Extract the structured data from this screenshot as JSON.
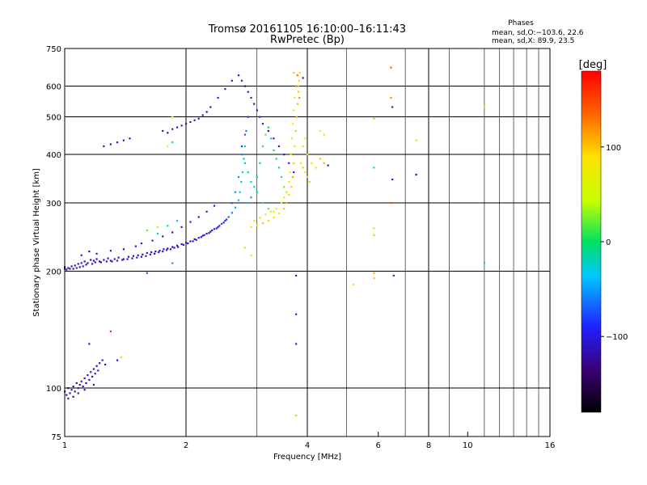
{
  "header": {
    "title_line1": "Tromsø 20161105 16:10:00–16:11:43",
    "title_line2": "RwPretec (Bp)",
    "phases_label": "Phases",
    "stats_o": "mean, sd,O:−103.6, 22.6",
    "stats_x": "mean, sd,X:  89.9, 23.5"
  },
  "colorbar": {
    "unit_label": "[deg]",
    "ticks": [
      {
        "value": 100,
        "label": "100"
      },
      {
        "value": 0,
        "label": "0"
      },
      {
        "value": -100,
        "label": "−100"
      }
    ],
    "range": [
      -180,
      180
    ]
  },
  "chart_data": {
    "type": "scatter",
    "title": "Tromsø 20161105 16:10:00–16:11:43 RwPretec (Bp)",
    "xlabel": "Frequency [MHz]",
    "ylabel": "Stationary phase Virtual Height [km]",
    "x_scale": "log",
    "y_scale": "log",
    "xlim": [
      1,
      16
    ],
    "ylim": [
      75,
      750
    ],
    "x_ticks": [
      {
        "value": 1,
        "label": "1"
      },
      {
        "value": 2,
        "label": "2"
      },
      {
        "value": 4,
        "label": "4"
      },
      {
        "value": 6,
        "label": "6"
      },
      {
        "value": 8,
        "label": "8"
      },
      {
        "value": 10,
        "label": "10"
      },
      {
        "value": 16,
        "label": "16"
      }
    ],
    "x_minor": [
      3,
      5,
      7,
      9,
      11,
      12,
      13,
      14,
      15
    ],
    "y_ticks": [
      {
        "value": 75,
        "label": "75"
      },
      {
        "value": 100,
        "label": "100"
      },
      {
        "value": 200,
        "label": "200"
      },
      {
        "value": 300,
        "label": "300"
      },
      {
        "value": 400,
        "label": "400"
      },
      {
        "value": 500,
        "label": "500"
      },
      {
        "value": 600,
        "label": "600"
      },
      {
        "value": 750,
        "label": "750"
      }
    ],
    "y_grid": [
      100,
      200,
      300,
      400,
      500,
      600
    ],
    "x_grid": [
      2,
      4,
      8
    ],
    "color_label": "phase [deg]",
    "points": [
      [
        1.0,
        205,
        -110
      ],
      [
        1.02,
        204,
        -115
      ],
      [
        1.04,
        206,
        -108
      ],
      [
        1.06,
        207,
        -112
      ],
      [
        1.08,
        209,
        -105
      ],
      [
        1.1,
        210,
        -100
      ],
      [
        1.12,
        212,
        -110
      ],
      [
        1.14,
        210,
        -118
      ],
      [
        1.16,
        214,
        -104
      ],
      [
        1.18,
        213,
        -96
      ],
      [
        1.2,
        215,
        -112
      ],
      [
        1.22,
        212,
        -120
      ],
      [
        1.25,
        214,
        -100
      ],
      [
        1.28,
        216,
        -108
      ],
      [
        1.3,
        213,
        -115
      ],
      [
        1.33,
        215,
        -95
      ],
      [
        1.36,
        217,
        -110
      ],
      [
        1.4,
        215,
        -102
      ],
      [
        1.44,
        218,
        -110
      ],
      [
        1.48,
        219,
        -106
      ],
      [
        1.52,
        220,
        -112
      ],
      [
        1.56,
        221,
        -100
      ],
      [
        1.6,
        223,
        -108
      ],
      [
        1.64,
        224,
        -115
      ],
      [
        1.68,
        225,
        -104
      ],
      [
        1.72,
        226,
        -110
      ],
      [
        1.76,
        228,
        -96
      ],
      [
        1.8,
        229,
        -108
      ],
      [
        1.85,
        231,
        -112
      ],
      [
        1.9,
        233,
        -104
      ],
      [
        1.95,
        235,
        -110
      ],
      [
        2.0,
        237,
        -100
      ],
      [
        2.05,
        239,
        -106
      ],
      [
        2.1,
        242,
        -112
      ],
      [
        2.15,
        244,
        -98
      ],
      [
        2.2,
        247,
        -104
      ],
      [
        2.25,
        250,
        -110
      ],
      [
        2.3,
        253,
        -100
      ],
      [
        2.35,
        257,
        -90
      ],
      [
        2.4,
        260,
        -96
      ],
      [
        2.45,
        265,
        -80
      ],
      [
        2.5,
        270,
        -84
      ],
      [
        2.55,
        276,
        -70
      ],
      [
        2.6,
        283,
        -60
      ],
      [
        2.65,
        292,
        -50
      ],
      [
        2.7,
        305,
        -40
      ],
      [
        2.72,
        320,
        -30
      ],
      [
        2.74,
        340,
        -20
      ],
      [
        2.76,
        360,
        -10
      ],
      [
        2.78,
        390,
        0
      ],
      [
        2.8,
        420,
        -20
      ],
      [
        2.82,
        460,
        -60
      ],
      [
        2.85,
        500,
        -90
      ],
      [
        1.1,
        220,
        -105
      ],
      [
        1.15,
        225,
        -112
      ],
      [
        1.2,
        222,
        -100
      ],
      [
        1.3,
        226,
        -95
      ],
      [
        1.4,
        228,
        -108
      ],
      [
        1.5,
        232,
        -100
      ],
      [
        1.55,
        236,
        -112
      ],
      [
        1.65,
        240,
        -98
      ],
      [
        1.75,
        246,
        -104
      ],
      [
        1.85,
        252,
        -110
      ],
      [
        1.95,
        260,
        -96
      ],
      [
        2.05,
        268,
        -102
      ],
      [
        2.15,
        276,
        -108
      ],
      [
        2.25,
        285,
        -100
      ],
      [
        2.35,
        295,
        -94
      ],
      [
        1.7,
        260,
        40
      ],
      [
        1.6,
        255,
        20
      ],
      [
        1.8,
        262,
        -10
      ],
      [
        1.9,
        270,
        -30
      ],
      [
        1.25,
        420,
        -105
      ],
      [
        1.3,
        425,
        -110
      ],
      [
        1.35,
        430,
        -112
      ],
      [
        1.4,
        435,
        -100
      ],
      [
        1.45,
        440,
        -108
      ],
      [
        1.75,
        460,
        -110
      ],
      [
        1.8,
        455,
        -115
      ],
      [
        1.85,
        465,
        -104
      ],
      [
        1.9,
        470,
        -100
      ],
      [
        1.95,
        475,
        -96
      ],
      [
        2.0,
        480,
        -104
      ],
      [
        2.05,
        485,
        -110
      ],
      [
        2.1,
        490,
        -98
      ],
      [
        2.15,
        495,
        -106
      ],
      [
        2.2,
        505,
        -104
      ],
      [
        2.25,
        515,
        -110
      ],
      [
        2.3,
        530,
        -100
      ],
      [
        2.4,
        560,
        -104
      ],
      [
        2.5,
        590,
        -96
      ],
      [
        2.6,
        620,
        -104
      ],
      [
        1.85,
        500,
        60
      ],
      [
        1.8,
        420,
        80
      ],
      [
        1.85,
        430,
        -20
      ],
      [
        2.7,
        640,
        -110
      ],
      [
        2.75,
        620,
        -100
      ],
      [
        2.8,
        600,
        -120
      ],
      [
        2.85,
        580,
        -104
      ],
      [
        2.9,
        560,
        -96
      ],
      [
        2.95,
        540,
        -110
      ],
      [
        3.0,
        520,
        -100
      ],
      [
        3.05,
        500,
        -104
      ],
      [
        3.1,
        480,
        -96
      ],
      [
        3.2,
        460,
        -106
      ],
      [
        3.3,
        440,
        -100
      ],
      [
        3.4,
        420,
        -110
      ],
      [
        3.5,
        400,
        -96
      ],
      [
        3.6,
        380,
        -90
      ],
      [
        3.7,
        360,
        -100
      ],
      [
        2.75,
        400,
        -60
      ],
      [
        2.8,
        380,
        -40
      ],
      [
        2.85,
        360,
        -30
      ],
      [
        2.9,
        340,
        -20
      ],
      [
        3.0,
        320,
        -10
      ],
      [
        3.1,
        300,
        10
      ],
      [
        3.2,
        290,
        20
      ],
      [
        3.3,
        285,
        40
      ],
      [
        2.6,
        300,
        -70
      ],
      [
        2.65,
        320,
        -50
      ],
      [
        2.7,
        350,
        -60
      ],
      [
        2.75,
        420,
        -80
      ],
      [
        2.8,
        450,
        -70
      ],
      [
        2.85,
        300,
        -40
      ],
      [
        2.9,
        310,
        -50
      ],
      [
        2.95,
        330,
        -20
      ],
      [
        3.0,
        350,
        -10
      ],
      [
        3.05,
        380,
        0
      ],
      [
        3.1,
        420,
        10
      ],
      [
        3.15,
        450,
        20
      ],
      [
        3.2,
        470,
        0
      ],
      [
        3.25,
        440,
        -30
      ],
      [
        3.3,
        410,
        -20
      ],
      [
        3.35,
        390,
        -10
      ],
      [
        3.4,
        370,
        0
      ],
      [
        3.45,
        350,
        10
      ],
      [
        3.5,
        330,
        20
      ],
      [
        3.55,
        320,
        30
      ],
      [
        2.9,
        260,
        80
      ],
      [
        3.0,
        263,
        90
      ],
      [
        3.1,
        266,
        100
      ],
      [
        3.2,
        270,
        95
      ],
      [
        3.3,
        275,
        85
      ],
      [
        3.4,
        282,
        90
      ],
      [
        3.5,
        290,
        100
      ],
      [
        3.55,
        300,
        110
      ],
      [
        3.6,
        315,
        95
      ],
      [
        3.65,
        330,
        100
      ],
      [
        3.68,
        350,
        110
      ],
      [
        3.7,
        380,
        100
      ],
      [
        3.72,
        420,
        90
      ],
      [
        3.74,
        460,
        100
      ],
      [
        3.76,
        500,
        110
      ],
      [
        3.78,
        540,
        105
      ],
      [
        3.8,
        580,
        100
      ],
      [
        3.82,
        620,
        95
      ],
      [
        3.83,
        650,
        80
      ],
      [
        2.95,
        270,
        60
      ],
      [
        3.05,
        275,
        70
      ],
      [
        3.15,
        280,
        80
      ],
      [
        3.25,
        285,
        75
      ],
      [
        3.35,
        290,
        70
      ],
      [
        3.45,
        300,
        65
      ],
      [
        3.5,
        310,
        60
      ],
      [
        3.55,
        320,
        70
      ],
      [
        3.6,
        340,
        80
      ],
      [
        3.62,
        360,
        90
      ],
      [
        3.64,
        400,
        70
      ],
      [
        3.66,
        440,
        60
      ],
      [
        3.68,
        480,
        70
      ],
      [
        3.7,
        520,
        80
      ],
      [
        3.72,
        560,
        90
      ],
      [
        3.75,
        600,
        120
      ],
      [
        3.78,
        640,
        130
      ],
      [
        3.8,
        600,
        110
      ],
      [
        3.82,
        560,
        120
      ],
      [
        3.85,
        380,
        90
      ],
      [
        3.9,
        370,
        100
      ],
      [
        3.95,
        360,
        85
      ],
      [
        4.0,
        350,
        95
      ],
      [
        4.05,
        340,
        100
      ],
      [
        3.9,
        420,
        80
      ],
      [
        3.95,
        440,
        90
      ],
      [
        4.0,
        400,
        70
      ],
      [
        4.1,
        380,
        60
      ],
      [
        4.2,
        370,
        80
      ],
      [
        4.3,
        390,
        100
      ],
      [
        4.4,
        380,
        110
      ],
      [
        4.5,
        375,
        -100
      ],
      [
        4.3,
        460,
        70
      ],
      [
        4.4,
        450,
        80
      ],
      [
        3.9,
        630,
        -100
      ],
      [
        3.7,
        650,
        100
      ],
      [
        1.15,
        130,
        -100
      ],
      [
        1.3,
        140,
        160
      ],
      [
        1.35,
        118,
        -110
      ],
      [
        1.38,
        120,
        40
      ],
      [
        1.0,
        98,
        -110
      ],
      [
        1.01,
        96,
        -118
      ],
      [
        1.02,
        100,
        -104
      ],
      [
        1.03,
        97,
        -112
      ],
      [
        1.04,
        99,
        -100
      ],
      [
        1.05,
        101,
        -115
      ],
      [
        1.06,
        98,
        -108
      ],
      [
        1.07,
        103,
        -110
      ],
      [
        1.08,
        100,
        -104
      ],
      [
        1.09,
        102,
        -112
      ],
      [
        1.1,
        104,
        -96
      ],
      [
        1.11,
        101,
        -108
      ],
      [
        1.12,
        106,
        -104
      ],
      [
        1.13,
        103,
        -112
      ],
      [
        1.14,
        108,
        -100
      ],
      [
        1.15,
        105,
        -110
      ],
      [
        1.16,
        110,
        -104
      ],
      [
        1.17,
        107,
        -115
      ],
      [
        1.18,
        112,
        -106
      ],
      [
        1.19,
        109,
        -100
      ],
      [
        1.2,
        114,
        -110
      ],
      [
        1.21,
        111,
        -104
      ],
      [
        1.22,
        116,
        -112
      ],
      [
        1.24,
        118,
        -108
      ],
      [
        1.26,
        115,
        -100
      ],
      [
        1.02,
        94,
        -106
      ],
      [
        1.05,
        95,
        -112
      ],
      [
        1.08,
        97,
        -100
      ],
      [
        1.12,
        99,
        -108
      ],
      [
        1.18,
        102,
        -104
      ],
      [
        1.0,
        203,
        -112
      ],
      [
        1.01,
        202,
        -120
      ],
      [
        1.03,
        203,
        -108
      ],
      [
        1.05,
        203,
        -115
      ],
      [
        1.07,
        204,
        -100
      ],
      [
        1.09,
        205,
        -112
      ],
      [
        1.11,
        206,
        -104
      ],
      [
        1.13,
        208,
        -110
      ],
      [
        1.17,
        209,
        -100
      ],
      [
        1.19,
        211,
        -108
      ],
      [
        1.23,
        211,
        -115
      ],
      [
        1.27,
        212,
        -104
      ],
      [
        1.31,
        212,
        -110
      ],
      [
        1.35,
        213,
        -100
      ],
      [
        1.39,
        214,
        -112
      ],
      [
        1.43,
        215,
        -104
      ],
      [
        1.47,
        216,
        -110
      ],
      [
        1.51,
        217,
        -100
      ],
      [
        1.55,
        218,
        -108
      ],
      [
        1.59,
        219,
        -96
      ],
      [
        1.63,
        221,
        -104
      ],
      [
        1.67,
        222,
        -110
      ],
      [
        1.71,
        224,
        -100
      ],
      [
        1.75,
        225,
        -108
      ],
      [
        1.79,
        227,
        -104
      ],
      [
        1.83,
        228,
        -112
      ],
      [
        1.87,
        230,
        -100
      ],
      [
        1.91,
        231,
        -108
      ],
      [
        1.97,
        234,
        -104
      ],
      [
        2.02,
        236,
        -110
      ],
      [
        2.08,
        239,
        -100
      ],
      [
        2.12,
        241,
        -106
      ],
      [
        2.18,
        245,
        -112
      ],
      [
        2.22,
        248,
        -100
      ],
      [
        2.28,
        251,
        -108
      ],
      [
        2.32,
        255,
        -104
      ],
      [
        2.38,
        258,
        -96
      ],
      [
        2.42,
        262,
        -100
      ],
      [
        2.48,
        267,
        -90
      ],
      [
        2.52,
        272,
        -84
      ],
      [
        1.6,
        198,
        -70
      ],
      [
        1.85,
        210,
        -50
      ],
      [
        1.7,
        250,
        -30
      ],
      [
        2.8,
        230,
        80
      ],
      [
        2.9,
        220,
        60
      ],
      [
        3.75,
        195,
        -100
      ],
      [
        3.75,
        155,
        -100
      ],
      [
        3.75,
        130,
        -100
      ],
      [
        3.75,
        85,
        100
      ],
      [
        5.2,
        185,
        40
      ],
      [
        5.85,
        495,
        110
      ],
      [
        5.85,
        370,
        -10
      ],
      [
        5.85,
        258,
        40
      ],
      [
        5.85,
        248,
        30
      ],
      [
        5.85,
        198,
        110
      ],
      [
        5.85,
        192,
        100
      ],
      [
        6.45,
        670,
        140
      ],
      [
        6.45,
        560,
        120
      ],
      [
        6.5,
        530,
        -100
      ],
      [
        6.5,
        345,
        -100
      ],
      [
        6.45,
        300,
        150
      ],
      [
        6.55,
        195,
        -100
      ],
      [
        7.45,
        355,
        -120
      ],
      [
        7.45,
        435,
        40
      ],
      [
        11.0,
        530,
        40
      ],
      [
        11.0,
        210,
        -20
      ]
    ]
  }
}
